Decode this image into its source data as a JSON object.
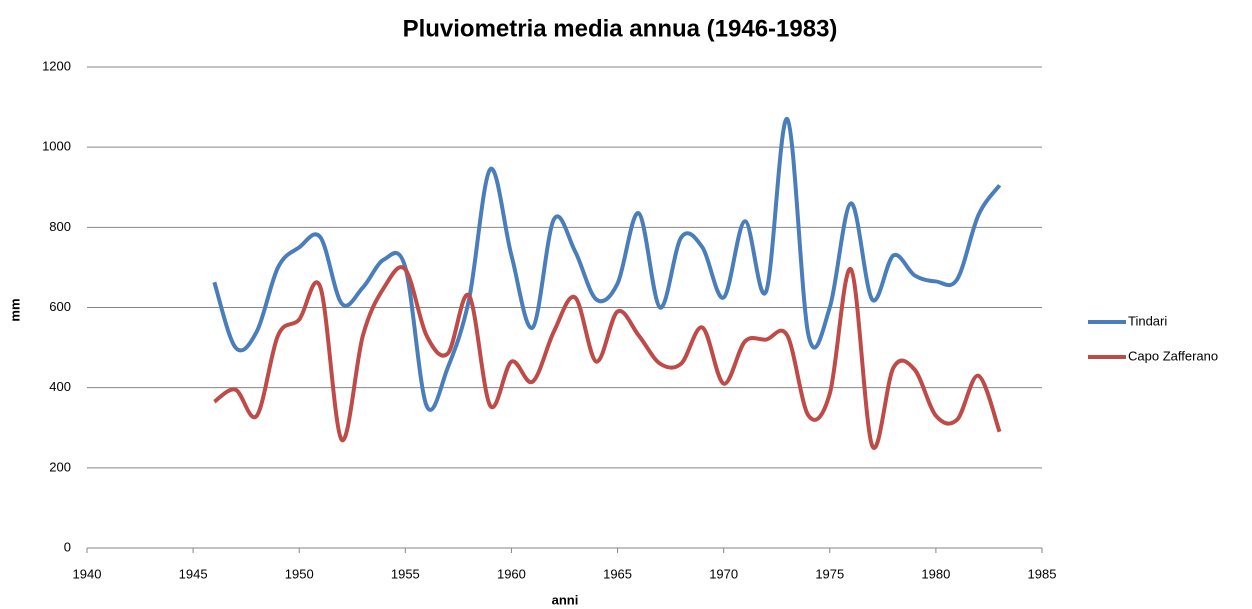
{
  "chart_data": {
    "type": "line",
    "title": "Pluviometria media annua (1946-1983)",
    "x_label": "anni",
    "y_label": "mm",
    "x": [
      1946,
      1947,
      1948,
      1949,
      1950,
      1951,
      1952,
      1953,
      1954,
      1955,
      1956,
      1957,
      1958,
      1959,
      1960,
      1961,
      1962,
      1963,
      1964,
      1965,
      1966,
      1967,
      1968,
      1969,
      1970,
      1971,
      1972,
      1973,
      1974,
      1975,
      1976,
      1977,
      1978,
      1979,
      1980,
      1981,
      1982,
      1983
    ],
    "series": [
      {
        "name": "Tindari",
        "color": "#4a7ebb",
        "values": [
          663,
          500,
          540,
          700,
          750,
          775,
          610,
          650,
          720,
          700,
          355,
          450,
          620,
          945,
          730,
          550,
          820,
          740,
          620,
          660,
          835,
          600,
          775,
          750,
          625,
          815,
          640,
          1070,
          530,
          600,
          860,
          620,
          730,
          680,
          665,
          670,
          830,
          905
        ]
      },
      {
        "name": "Capo Zafferano",
        "color": "#be4b48",
        "values": [
          365,
          395,
          330,
          530,
          570,
          650,
          270,
          530,
          650,
          695,
          530,
          485,
          630,
          355,
          465,
          415,
          540,
          625,
          465,
          590,
          530,
          460,
          460,
          550,
          410,
          515,
          520,
          530,
          330,
          385,
          695,
          255,
          450,
          445,
          330,
          320,
          430,
          290
        ]
      }
    ],
    "xlim": [
      1940,
      1985
    ],
    "xticks": [
      1940,
      1945,
      1950,
      1955,
      1960,
      1965,
      1970,
      1975,
      1980,
      1985
    ],
    "ylim": [
      0,
      1200
    ],
    "yticks": [
      0,
      200,
      400,
      600,
      800,
      1000,
      1200
    ],
    "grid": true,
    "legend": "right"
  }
}
